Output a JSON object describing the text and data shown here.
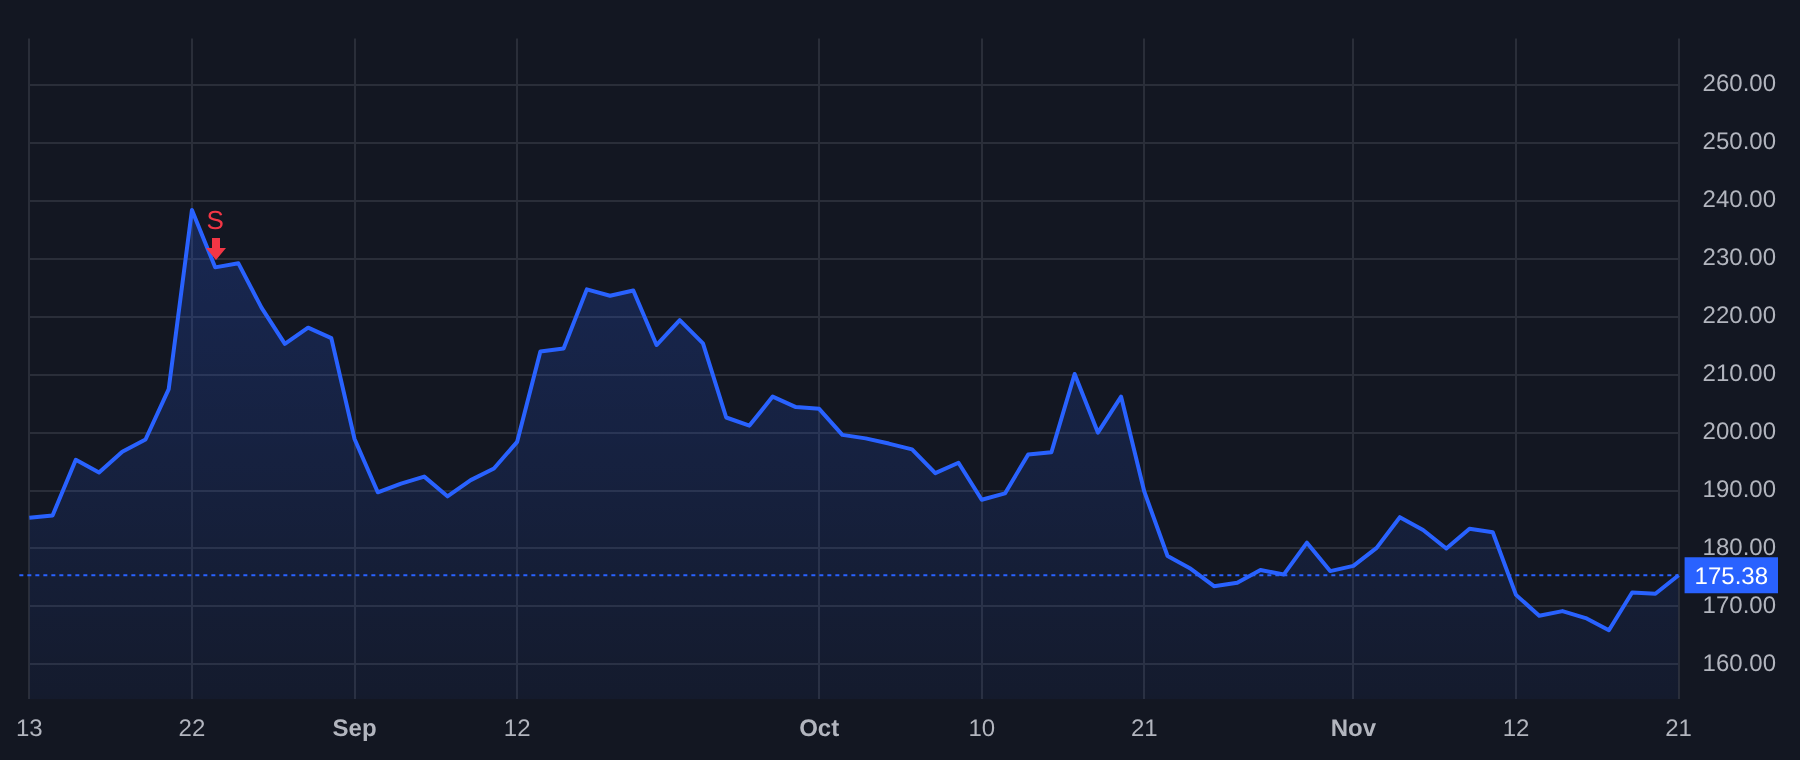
{
  "chart_data": {
    "type": "area",
    "categories": [
      "13",
      null,
      null,
      null,
      null,
      null,
      null,
      "22",
      null,
      null,
      null,
      null,
      null,
      null,
      "Sep",
      null,
      null,
      null,
      null,
      null,
      null,
      "12",
      null,
      null,
      null,
      null,
      null,
      null,
      null,
      null,
      null,
      null,
      null,
      null,
      "Oct",
      null,
      null,
      null,
      null,
      null,
      null,
      "10",
      null,
      null,
      null,
      null,
      null,
      null,
      "21",
      null,
      null,
      null,
      null,
      null,
      null,
      null,
      null,
      "Nov",
      null,
      null,
      null,
      null,
      null,
      null,
      "12",
      null,
      null,
      null,
      null,
      null,
      null,
      "21"
    ],
    "series": [
      {
        "color": "#2962ff",
        "values": [
          185.3,
          185.7,
          195.3,
          193.1,
          196.7,
          198.8,
          207.5,
          238.4,
          228.5,
          229.2,
          221.5,
          215.3,
          218.1,
          216.3,
          198.9,
          189.7,
          191.2,
          192.4,
          189.0,
          191.8,
          193.8,
          198.4,
          214.0,
          214.5,
          224.7,
          223.6,
          224.5,
          215.1,
          219.4,
          215.4,
          202.6,
          201.2,
          206.2,
          204.4,
          204.1,
          199.6,
          199.0,
          198.1,
          197.1,
          193.0,
          194.8,
          188.4,
          189.5,
          196.2,
          196.6,
          210.1,
          200.0,
          206.2,
          189.8,
          178.7,
          176.5,
          173.5,
          174.1,
          176.3,
          175.5,
          181.0,
          176.1,
          177.0,
          180.1,
          185.4,
          183.2,
          180.0,
          183.4,
          182.8,
          172.0,
          168.4,
          169.2,
          168.0,
          165.9,
          172.4,
          172.2,
          175.38
        ]
      }
    ],
    "ylim": [
      154,
      268
    ],
    "yticks": [
      {
        "value": 160,
        "label": "160.00"
      },
      {
        "value": 170,
        "label": "170.00"
      },
      {
        "value": 180,
        "label": "180.00"
      },
      {
        "value": 190,
        "label": "190.00"
      },
      {
        "value": 200,
        "label": "200.00"
      },
      {
        "value": 210,
        "label": "210.00"
      },
      {
        "value": 220,
        "label": "220.00"
      },
      {
        "value": 230,
        "label": "230.00"
      },
      {
        "value": 240,
        "label": "240.00"
      },
      {
        "value": 250,
        "label": "250.00"
      },
      {
        "value": 260,
        "label": "260.00"
      }
    ],
    "grid": true,
    "legend": false,
    "ref_lines": [
      {
        "axis": "y",
        "value": 175.38,
        "label": "175.38",
        "color": "#2962ff",
        "line_style": "dotted"
      }
    ],
    "annotations": [
      {
        "text": "S",
        "y": 228.5
      }
    ]
  }
}
